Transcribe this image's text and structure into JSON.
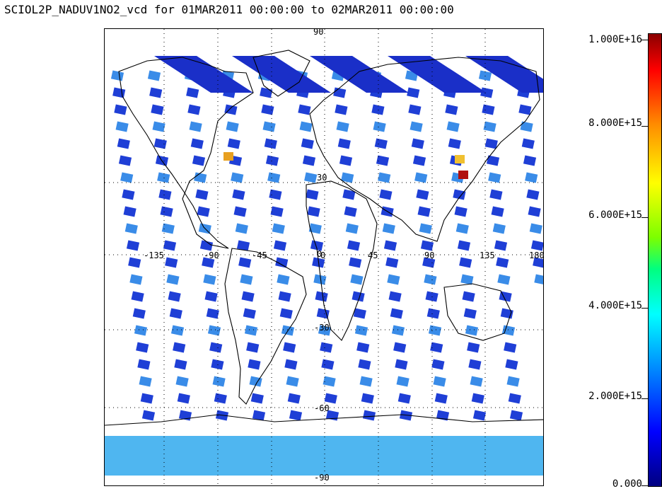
{
  "title": "SCIOL2P_NADUV1NO2_vcd for 01MAR2011 00:00:00 to 02MAR2011 00:00:00",
  "map": {
    "projection_labels_lat": [
      "30",
      "0",
      "-30",
      "-60",
      "-90"
    ],
    "top_lat_label": "90",
    "lon_labels": [
      "-135",
      "-90",
      "-45",
      "0",
      "45",
      "90",
      "135",
      "180"
    ]
  },
  "colorbar": {
    "labels": [
      "1.000E+16",
      "8.000E+15",
      "6.000E+15",
      "4.000E+15",
      "2.000E+15",
      "0.000"
    ],
    "min": 0,
    "max": 1e+16,
    "colors": [
      "#000080",
      "#0000ff",
      "#0080ff",
      "#00ffff",
      "#00ff80",
      "#7cff00",
      "#ffff00",
      "#ff8c00",
      "#ff0000",
      "#8b0000"
    ]
  },
  "colors": {
    "low_swath": "#1f3fd6",
    "mid_swath": "#3a8ce8",
    "polar_band": "#4fb6f0",
    "hotspot": "#b01010"
  }
}
